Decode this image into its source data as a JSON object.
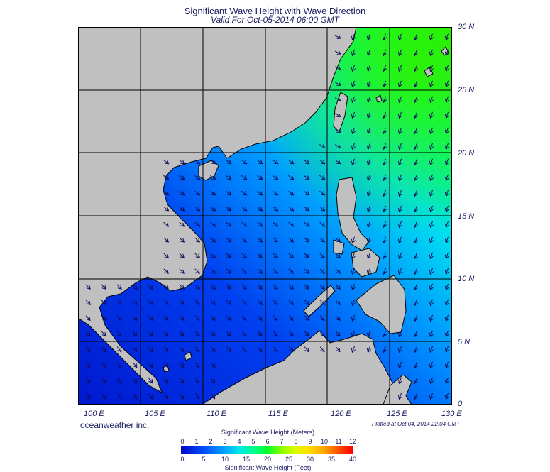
{
  "title": "Significant Wave Height with Wave Direction",
  "subtitle": "Valid For Oct-05-2014 06:00 GMT",
  "lat_labels": [
    "30 N",
    "25 N",
    "20 N",
    "15 N",
    "10 N",
    "5 N",
    "0"
  ],
  "lon_labels": [
    "100 E",
    "105 E",
    "110 E",
    "115 E",
    "120 E",
    "125 E",
    "130 E"
  ],
  "brand": "oceanweather inc.",
  "plotted": "Plotted at Oct 04, 2014 22:04 GMT",
  "colorbar": {
    "meters_title": "Significant Wave Height (Meters)",
    "meters_ticks": [
      "0",
      "1",
      "2",
      "3",
      "4",
      "5",
      "6",
      "7",
      "8",
      "9",
      "10",
      "11",
      "12"
    ],
    "feet_title": "Significant Wave Height (Feet)",
    "feet_ticks": [
      "0",
      "5",
      "10",
      "15",
      "20",
      "25",
      "30",
      "35",
      "40"
    ]
  },
  "colors": {
    "land": "#c0c0c0",
    "ocean_low": "#0030e8",
    "ocean_high": "#00f000"
  }
}
